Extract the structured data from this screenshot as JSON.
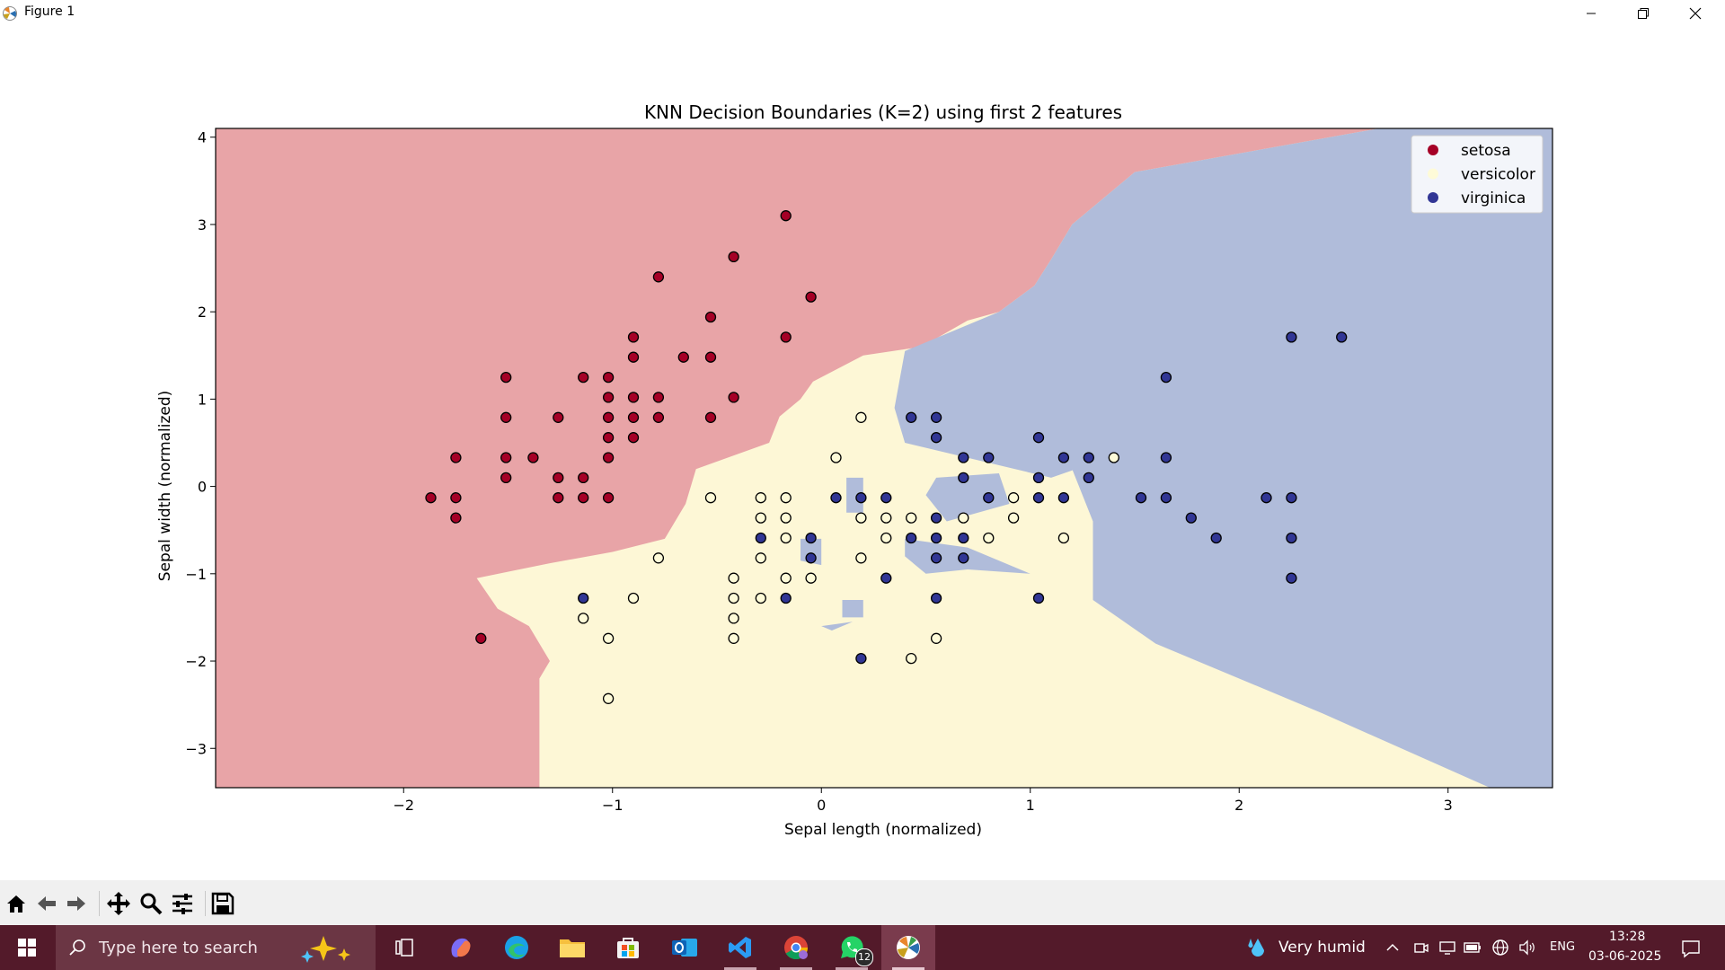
{
  "window": {
    "title": "Figure 1"
  },
  "chart_data": {
    "type": "scatter",
    "title": "KNN Decision Boundaries (K=2) using first 2 features",
    "xlabel": "Sepal length (normalized)",
    "ylabel": "Sepal width (normalized)",
    "xlim": [
      -2.9,
      3.5
    ],
    "ylim": [
      -3.45,
      4.1
    ],
    "xticks": [
      -2,
      -1,
      0,
      1,
      2,
      3
    ],
    "yticks": [
      -3,
      -2,
      -1,
      0,
      1,
      2,
      3,
      4
    ],
    "xtick_labels": [
      "−2",
      "−1",
      "0",
      "1",
      "2",
      "3"
    ],
    "ytick_labels": [
      "−3",
      "−2",
      "−1",
      "0",
      "1",
      "2",
      "3",
      "4"
    ],
    "legend_position": "top-right",
    "region_colors": {
      "setosa": "#e8a4a7",
      "versicolor": "#fdf7d6",
      "virginica": "#b0bcda"
    },
    "regions": {
      "setosa": [
        [
          -2.9,
          4.1
        ],
        [
          2.67,
          4.1
        ],
        [
          1.5,
          3.6
        ],
        [
          1.2,
          3.0
        ],
        [
          1.1,
          2.6
        ],
        [
          1.02,
          2.3
        ],
        [
          0.85,
          2.0
        ],
        [
          0.7,
          1.9
        ],
        [
          0.48,
          1.6
        ],
        [
          0.2,
          1.5
        ],
        [
          -0.04,
          1.2
        ],
        [
          -0.1,
          1.0
        ],
        [
          -0.2,
          0.8
        ],
        [
          -0.25,
          0.5
        ],
        [
          -0.6,
          0.2
        ],
        [
          -0.65,
          -0.2
        ],
        [
          -0.75,
          -0.6
        ],
        [
          -1.0,
          -0.75
        ],
        [
          -1.3,
          -0.88
        ],
        [
          -1.65,
          -1.05
        ],
        [
          -1.55,
          -1.4
        ],
        [
          -1.4,
          -1.6
        ],
        [
          -1.3,
          -2.0
        ],
        [
          -1.35,
          -2.2
        ],
        [
          -1.35,
          -3.45
        ],
        [
          -2.9,
          -3.45
        ]
      ],
      "virginica": [
        [
          0.4,
          1.55
        ],
        [
          0.85,
          2.0
        ],
        [
          1.02,
          2.3
        ],
        [
          1.1,
          2.6
        ],
        [
          1.2,
          3.0
        ],
        [
          1.5,
          3.6
        ],
        [
          2.67,
          4.1
        ],
        [
          3.5,
          4.1
        ],
        [
          3.5,
          -3.45
        ],
        [
          3.2,
          -3.45
        ],
        [
          2.4,
          -2.6
        ],
        [
          1.6,
          -1.8
        ],
        [
          1.3,
          -1.3
        ],
        [
          1.3,
          -0.4
        ],
        [
          1.2,
          0.2
        ],
        [
          1.5,
          0.5
        ],
        [
          1.7,
          0.9
        ],
        [
          2.1,
          0.6
        ],
        [
          1.7,
          0.2
        ],
        [
          1.4,
          0.35
        ],
        [
          1.1,
          0.1
        ],
        [
          0.4,
          0.5
        ],
        [
          0.35,
          0.9
        ]
      ],
      "virginica_islands": [
        [
          [
            0.55,
            0.1
          ],
          [
            0.85,
            0.15
          ],
          [
            0.9,
            -0.2
          ],
          [
            0.6,
            -0.4
          ],
          [
            0.5,
            -0.1
          ]
        ],
        [
          [
            0.4,
            -0.6
          ],
          [
            0.7,
            -0.7
          ],
          [
            1.0,
            -1.0
          ],
          [
            0.7,
            -0.95
          ],
          [
            0.5,
            -1.0
          ],
          [
            0.4,
            -0.8
          ]
        ],
        [
          [
            0.12,
            0.1
          ],
          [
            0.2,
            0.1
          ],
          [
            0.2,
            -0.3
          ],
          [
            0.12,
            -0.3
          ]
        ],
        [
          [
            -0.1,
            -0.6
          ],
          [
            0.0,
            -0.6
          ],
          [
            0.0,
            -0.9
          ],
          [
            -0.1,
            -0.85
          ]
        ],
        [
          [
            0.1,
            -1.3
          ],
          [
            0.2,
            -1.3
          ],
          [
            0.2,
            -1.5
          ],
          [
            0.1,
            -1.5
          ]
        ],
        [
          [
            0.0,
            -1.6
          ],
          [
            0.15,
            -1.55
          ],
          [
            0.05,
            -1.65
          ]
        ]
      ]
    },
    "series": [
      {
        "name": "setosa",
        "color": "#a50026",
        "points": [
          [
            -0.17,
            3.1
          ],
          [
            -0.42,
            2.63
          ],
          [
            -0.05,
            2.17
          ],
          [
            -0.78,
            2.4
          ],
          [
            -0.53,
            1.94
          ],
          [
            -0.17,
            1.71
          ],
          [
            -0.9,
            1.71
          ],
          [
            -0.9,
            1.48
          ],
          [
            -0.66,
            1.48
          ],
          [
            -0.53,
            1.48
          ],
          [
            -1.51,
            1.25
          ],
          [
            -1.14,
            1.25
          ],
          [
            -1.02,
            1.25
          ],
          [
            -1.02,
            1.02
          ],
          [
            -0.9,
            1.02
          ],
          [
            -0.78,
            1.02
          ],
          [
            -0.42,
            1.02
          ],
          [
            -1.51,
            0.79
          ],
          [
            -1.26,
            0.79
          ],
          [
            -1.02,
            0.79
          ],
          [
            -0.9,
            0.79
          ],
          [
            -0.78,
            0.79
          ],
          [
            -0.53,
            0.79
          ],
          [
            -1.02,
            0.56
          ],
          [
            -0.9,
            0.56
          ],
          [
            -1.75,
            0.33
          ],
          [
            -1.51,
            0.33
          ],
          [
            -1.38,
            0.33
          ],
          [
            -1.02,
            0.33
          ],
          [
            -1.51,
            0.1
          ],
          [
            -1.26,
            0.1
          ],
          [
            -1.14,
            0.1
          ],
          [
            -1.87,
            -0.13
          ],
          [
            -1.75,
            -0.13
          ],
          [
            -1.26,
            -0.13
          ],
          [
            -1.14,
            -0.13
          ],
          [
            -1.02,
            -0.13
          ],
          [
            -1.75,
            -0.36
          ],
          [
            -1.63,
            -1.74
          ]
        ]
      },
      {
        "name": "versicolor",
        "color": "#fefbd8",
        "points": [
          [
            0.19,
            0.79
          ],
          [
            0.07,
            0.33
          ],
          [
            1.4,
            0.33
          ],
          [
            -0.53,
            -0.13
          ],
          [
            -0.29,
            -0.13
          ],
          [
            -0.17,
            -0.13
          ],
          [
            0.92,
            -0.13
          ],
          [
            -0.29,
            -0.36
          ],
          [
            -0.17,
            -0.36
          ],
          [
            0.19,
            -0.36
          ],
          [
            0.31,
            -0.36
          ],
          [
            0.43,
            -0.36
          ],
          [
            0.68,
            -0.36
          ],
          [
            0.92,
            -0.36
          ],
          [
            -0.17,
            -0.59
          ],
          [
            0.31,
            -0.59
          ],
          [
            0.8,
            -0.59
          ],
          [
            1.16,
            -0.59
          ],
          [
            -0.78,
            -0.82
          ],
          [
            -0.29,
            -0.82
          ],
          [
            0.19,
            -0.82
          ],
          [
            -0.42,
            -1.05
          ],
          [
            -0.17,
            -1.05
          ],
          [
            -0.05,
            -1.05
          ],
          [
            -0.9,
            -1.28
          ],
          [
            -0.42,
            -1.28
          ],
          [
            -0.29,
            -1.28
          ],
          [
            -1.14,
            -1.51
          ],
          [
            -0.42,
            -1.51
          ],
          [
            -1.02,
            -1.74
          ],
          [
            -0.42,
            -1.74
          ],
          [
            0.55,
            -1.74
          ],
          [
            0.43,
            -1.97
          ],
          [
            -1.02,
            -2.43
          ]
        ]
      },
      {
        "name": "virginica",
        "color": "#313695",
        "points": [
          [
            2.25,
            1.71
          ],
          [
            2.49,
            1.71
          ],
          [
            1.65,
            1.25
          ],
          [
            0.43,
            0.79
          ],
          [
            0.55,
            0.79
          ],
          [
            0.55,
            0.56
          ],
          [
            1.04,
            0.56
          ],
          [
            0.68,
            0.33
          ],
          [
            0.8,
            0.33
          ],
          [
            1.16,
            0.33
          ],
          [
            1.28,
            0.33
          ],
          [
            1.65,
            0.33
          ],
          [
            0.68,
            0.1
          ],
          [
            1.04,
            0.1
          ],
          [
            1.28,
            0.1
          ],
          [
            0.07,
            -0.13
          ],
          [
            0.19,
            -0.13
          ],
          [
            0.31,
            -0.13
          ],
          [
            0.8,
            -0.13
          ],
          [
            1.04,
            -0.13
          ],
          [
            1.16,
            -0.13
          ],
          [
            1.53,
            -0.13
          ],
          [
            1.65,
            -0.13
          ],
          [
            2.13,
            -0.13
          ],
          [
            2.25,
            -0.13
          ],
          [
            0.55,
            -0.36
          ],
          [
            1.77,
            -0.36
          ],
          [
            -0.29,
            -0.59
          ],
          [
            -0.05,
            -0.59
          ],
          [
            0.43,
            -0.59
          ],
          [
            0.55,
            -0.59
          ],
          [
            0.68,
            -0.59
          ],
          [
            1.89,
            -0.59
          ],
          [
            2.25,
            -0.59
          ],
          [
            -0.05,
            -0.82
          ],
          [
            0.55,
            -0.82
          ],
          [
            0.68,
            -0.82
          ],
          [
            0.31,
            -1.05
          ],
          [
            2.25,
            -1.05
          ],
          [
            -1.14,
            -1.28
          ],
          [
            -0.17,
            -1.28
          ],
          [
            0.55,
            -1.28
          ],
          [
            1.04,
            -1.28
          ],
          [
            0.19,
            -1.97
          ]
        ]
      }
    ]
  },
  "toolbar": {
    "icons": [
      "home-icon",
      "back-arrow-icon",
      "forward-arrow-icon",
      "pan-icon",
      "zoom-icon",
      "configure-subplots-icon",
      "save-icon"
    ]
  },
  "taskbar": {
    "search_placeholder": "Type here to search",
    "weather": "Very humid",
    "language": "ENG",
    "time": "13:28",
    "date": "03-06-2025",
    "whatsapp_badge": "12",
    "colors": {
      "bar": "#531a2a",
      "search": "#6b3644"
    }
  }
}
